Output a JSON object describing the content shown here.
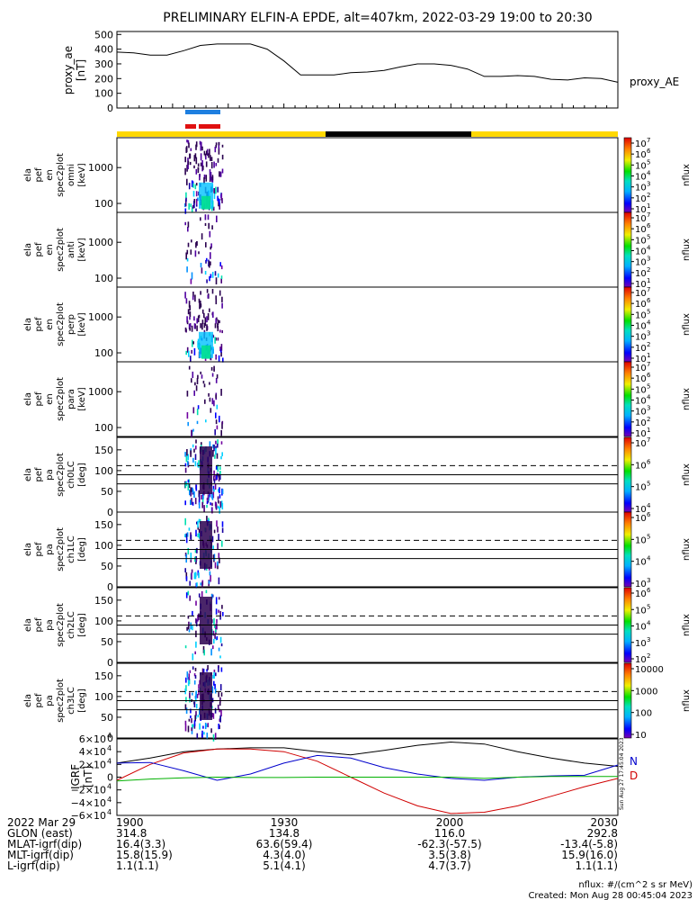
{
  "title": "PRELIMINARY ELFIN-A EPDE, alt=407km, 2022-03-29 19:00 to 20:30",
  "ae_panel": {
    "ylabel_lines": [
      "proxy_ae",
      "[nT]"
    ],
    "legend": "proxy_AE",
    "yticks": [
      "500",
      "400",
      "300",
      "200",
      "100",
      "0"
    ],
    "ylim": [
      0,
      520
    ]
  },
  "spec_panels": [
    {
      "ylabel_lines": [
        "ela",
        "pef",
        "en",
        "spec2plot",
        "omni",
        "[keV]"
      ],
      "yticks": [
        "1000",
        "100"
      ],
      "cbar_label": "nflux"
    },
    {
      "ylabel_lines": [
        "ela",
        "pef",
        "en",
        "spec2plot",
        "anti",
        "[keV]"
      ],
      "yticks": [
        "1000",
        "100"
      ],
      "cbar_label": "nflux"
    },
    {
      "ylabel_lines": [
        "ela",
        "pef",
        "en",
        "spec2plot",
        "perp",
        "[keV]"
      ],
      "yticks": [
        "1000",
        "100"
      ],
      "cbar_label": "nflux"
    },
    {
      "ylabel_lines": [
        "ela",
        "pef",
        "en",
        "spec2plot",
        "para",
        "[keV]"
      ],
      "yticks": [
        "1000",
        "100"
      ],
      "cbar_label": "nflux"
    }
  ],
  "pa_panels": [
    {
      "ylabel_lines": [
        "ela",
        "pef",
        "pa",
        "spec2plot",
        "ch0LC",
        "[deg]"
      ],
      "yticks": [
        "150",
        "100",
        "50",
        "0"
      ],
      "cbar_label": "nflux"
    },
    {
      "ylabel_lines": [
        "ela",
        "pef",
        "pa",
        "spec2plot",
        "ch1LC",
        "[deg]"
      ],
      "yticks": [
        "150",
        "100",
        "50",
        "0"
      ],
      "cbar_label": "nflux"
    },
    {
      "ylabel_lines": [
        "ela",
        "pef",
        "pa",
        "spec2plot",
        "ch2LC",
        "[deg]"
      ],
      "yticks": [
        "150",
        "100",
        "50",
        "0"
      ],
      "cbar_label": "nflux"
    },
    {
      "ylabel_lines": [
        "ela",
        "pef",
        "pa",
        "spec2plot",
        "ch3LC",
        "[deg]"
      ],
      "yticks": [
        "150",
        "100",
        "50",
        "0"
      ],
      "cbar_label": "nflux"
    }
  ],
  "cbar_ticks": {
    "spec": [
      "10",
      "10",
      "10",
      "10",
      "10",
      "10",
      "10"
    ],
    "spec_exp": [
      "7",
      "6",
      "5",
      "4",
      "3",
      "2",
      "1"
    ],
    "pa0": [
      "10",
      "10",
      "10",
      "10"
    ],
    "pa0_exp": [
      "7",
      "6",
      "5",
      "4"
    ],
    "pa1": [
      "10",
      "10",
      "10",
      "10"
    ],
    "pa1_exp": [
      "6",
      "5",
      "4",
      "3"
    ],
    "pa2": [
      "10",
      "10",
      "10",
      "10",
      "10"
    ],
    "pa2_exp": [
      "6",
      "5",
      "4",
      "3",
      "2"
    ],
    "pa3": [
      "10000",
      "1000",
      "100",
      "10"
    ]
  },
  "igrf_panel": {
    "ylabel_lines": [
      "IGRF",
      "[nT]"
    ],
    "ytick_mant": [
      "6×10",
      "4×10",
      "2×10",
      "0",
      "−2×10",
      "−4×10",
      "−6×10"
    ],
    "ytick_exp": [
      "4",
      "4",
      "4",
      "",
      "4",
      "4",
      "4"
    ],
    "legend": [
      "N",
      "D"
    ],
    "side_note": "Sun Aug 27 17:45:04 2023",
    "ylim": [
      -60000,
      60000
    ]
  },
  "footer": {
    "rows": [
      {
        "label": "2022 Mar 29",
        "vals": [
          "1900",
          "1930",
          "2000",
          "2030"
        ]
      },
      {
        "label": "GLON (east)",
        "vals": [
          "314.8",
          "134.8",
          "116.0",
          "292.8"
        ]
      },
      {
        "label": "MLAT-igrf(dip)",
        "vals": [
          "16.4(3.3)",
          "63.6(59.4)",
          "-62.3(-57.5)",
          "-13.4(-5.8)"
        ]
      },
      {
        "label": "MLT-igrf(dip)",
        "vals": [
          "15.8(15.9)",
          "4.3(4.0)",
          "3.5(3.8)",
          "15.9(16.0)"
        ]
      },
      {
        "label": "L-igrf(dip)",
        "vals": [
          "1.1(1.1)",
          "5.1(4.1)",
          "4.7(3.7)",
          "1.1(1.1)"
        ]
      }
    ],
    "note1": "nflux: #/(cm^2 s sr MeV)",
    "note2": "Created: Mon Aug 28 00:45:04 2023"
  },
  "colors": {
    "sunlight": "#ffd800",
    "shadow": "#000000",
    "science_blue": "#1e7fe0",
    "science_red": "#e01010",
    "bx": "#000000",
    "by": "#0000cc",
    "bz": "#d00000",
    "bt": "#00b000"
  },
  "chart_data": [
    {
      "type": "line",
      "name": "proxy_AE",
      "xlim": [
        "19:00",
        "20:30"
      ],
      "x_minutes": [
        0,
        3,
        6,
        9,
        12,
        15,
        18,
        21,
        24,
        27,
        30,
        33,
        36,
        39,
        42,
        45,
        48,
        51,
        54,
        57,
        60,
        63,
        66,
        69,
        72,
        75,
        78,
        81,
        84,
        87,
        90
      ],
      "values": [
        380,
        375,
        360,
        360,
        390,
        425,
        435,
        435,
        435,
        400,
        320,
        225,
        225,
        225,
        240,
        245,
        255,
        280,
        300,
        300,
        290,
        265,
        215,
        215,
        220,
        215,
        195,
        190,
        205,
        200,
        175
      ],
      "ylim": [
        0,
        520
      ]
    },
    {
      "type": "line",
      "name": "IGRF",
      "xlim": [
        "19:00",
        "20:30"
      ],
      "ylim": [
        -60000,
        60000
      ],
      "series": [
        {
          "name": "N",
          "x_minutes": [
            0,
            6,
            12,
            18,
            24,
            30,
            36,
            42,
            48,
            54,
            60,
            66,
            72,
            78,
            84,
            90
          ],
          "values": [
            22000,
            30000,
            40000,
            44000,
            46000,
            46000,
            40000,
            35000,
            42000,
            50000,
            55000,
            52000,
            40000,
            30000,
            22000,
            17000
          ]
        },
        {
          "name": "D",
          "x_minutes": [
            0,
            6,
            12,
            18,
            24,
            30,
            36,
            42,
            48,
            54,
            60,
            66,
            72,
            78,
            84,
            90
          ],
          "values": [
            -5000,
            20000,
            38000,
            44000,
            44000,
            40000,
            25000,
            0,
            -25000,
            -45000,
            -57000,
            -55000,
            -45000,
            -30000,
            -15000,
            -2000
          ]
        },
        {
          "name": "",
          "x_minutes": [
            0,
            6,
            12,
            18,
            24,
            30,
            36,
            42,
            48,
            54,
            60,
            66,
            72,
            78,
            84,
            90
          ],
          "values": [
            22000,
            23000,
            10000,
            -5000,
            5000,
            22000,
            34000,
            30000,
            15000,
            5000,
            -2000,
            -5000,
            0,
            2000,
            3000,
            19000
          ]
        },
        {
          "name": "",
          "x_minutes": [
            0,
            6,
            12,
            18,
            24,
            30,
            36,
            42,
            48,
            54,
            60,
            66,
            72,
            78,
            84,
            90
          ],
          "values": [
            -6000,
            -3000,
            -1000,
            0,
            -500,
            -500,
            0,
            0,
            0,
            0,
            0,
            -2000,
            0,
            1000,
            1000,
            1000
          ]
        }
      ]
    }
  ]
}
